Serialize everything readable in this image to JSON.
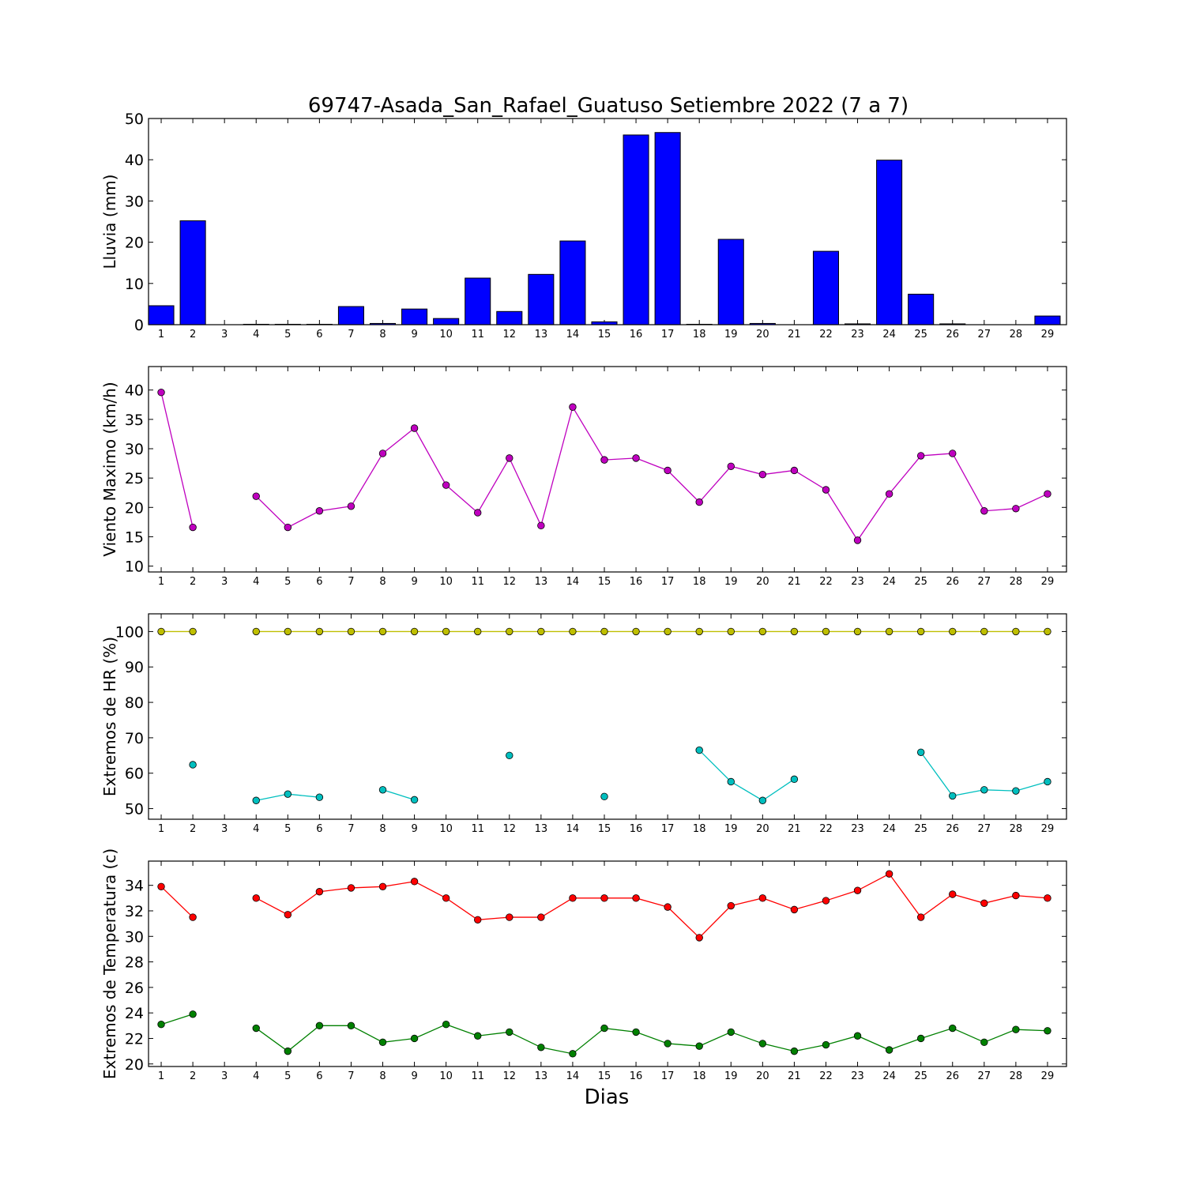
{
  "title": "69747-Asada_San_Rafael_Guatuso Setiembre 2022  (7 a 7)",
  "xlabel": "Dias",
  "days": [
    1,
    2,
    3,
    4,
    5,
    6,
    7,
    8,
    9,
    10,
    11,
    12,
    13,
    14,
    15,
    16,
    17,
    18,
    19,
    20,
    21,
    22,
    23,
    24,
    25,
    26,
    27,
    28,
    29
  ],
  "chart_data": [
    {
      "type": "bar",
      "ylabel": "Lluvia (mm)",
      "ylim": [
        0,
        50
      ],
      "yticks": [
        0,
        10,
        20,
        30,
        40,
        50
      ],
      "grid": false,
      "series": [
        {
          "color": "#0000ff",
          "values": [
            4.6,
            25.2,
            0,
            0.1,
            0.1,
            0.1,
            4.4,
            0.3,
            3.8,
            1.5,
            11.3,
            3.2,
            12.2,
            20.3,
            0.7,
            46.0,
            46.6,
            0.1,
            20.7,
            0.3,
            0,
            17.8,
            0.2,
            39.9,
            7.4,
            0.2,
            0,
            0,
            2.1
          ]
        }
      ]
    },
    {
      "type": "line",
      "ylabel": "Viento Maximo (km/h)",
      "ylim": [
        9,
        44
      ],
      "yticks": [
        10,
        15,
        20,
        25,
        30,
        35,
        40
      ],
      "grid": false,
      "series": [
        {
          "color": "#bf00bf",
          "values": [
            39.6,
            16.6,
            null,
            21.9,
            16.6,
            19.4,
            20.2,
            29.2,
            33.5,
            23.8,
            19.1,
            28.4,
            16.9,
            37.1,
            28.1,
            28.4,
            26.3,
            20.9,
            27.0,
            25.6,
            26.3,
            23.0,
            14.4,
            22.3,
            28.8,
            29.2,
            19.4,
            19.8,
            22.3
          ]
        }
      ]
    },
    {
      "type": "line",
      "ylabel": "Extremos de HR (%)",
      "ylim": [
        47,
        105
      ],
      "yticks": [
        50,
        60,
        70,
        80,
        90,
        100
      ],
      "grid": false,
      "series": [
        {
          "color": "#bfbf00",
          "values": [
            100,
            100,
            null,
            100,
            100,
            100,
            100,
            100,
            100,
            100,
            100,
            100,
            100,
            100,
            100,
            100,
            100,
            100,
            100,
            100,
            100,
            100,
            100,
            100,
            100,
            100,
            100,
            100,
            100
          ]
        },
        {
          "color": "#00bfbf",
          "values": [
            null,
            62.4,
            null,
            52.3,
            54.1,
            53.2,
            null,
            55.3,
            52.5,
            null,
            null,
            65.0,
            null,
            null,
            53.4,
            null,
            null,
            66.5,
            57.6,
            52.3,
            58.3,
            null,
            null,
            null,
            65.9,
            53.6,
            55.3,
            55.0,
            57.6
          ]
        }
      ]
    },
    {
      "type": "line",
      "ylabel": "Extremos de Temperatura (c)",
      "ylim": [
        19.8,
        35.9
      ],
      "yticks": [
        20,
        22,
        24,
        26,
        28,
        30,
        32,
        34
      ],
      "grid": false,
      "series": [
        {
          "color": "#ff0000",
          "values": [
            33.9,
            31.5,
            null,
            33.0,
            31.7,
            33.5,
            33.8,
            33.9,
            34.3,
            33.0,
            31.3,
            31.5,
            31.5,
            33.0,
            33.0,
            33.0,
            32.3,
            29.9,
            32.4,
            33.0,
            32.1,
            32.8,
            33.6,
            34.9,
            31.5,
            33.3,
            32.6,
            33.2,
            33.0
          ]
        },
        {
          "color": "#008000",
          "values": [
            23.1,
            23.9,
            null,
            22.8,
            21.0,
            23.0,
            23.0,
            21.7,
            22.0,
            23.1,
            22.2,
            22.5,
            21.3,
            20.8,
            22.8,
            22.5,
            21.6,
            21.4,
            22.5,
            21.6,
            21.0,
            21.5,
            22.2,
            21.1,
            22.0,
            22.8,
            21.7,
            22.7,
            22.6
          ]
        }
      ]
    }
  ]
}
